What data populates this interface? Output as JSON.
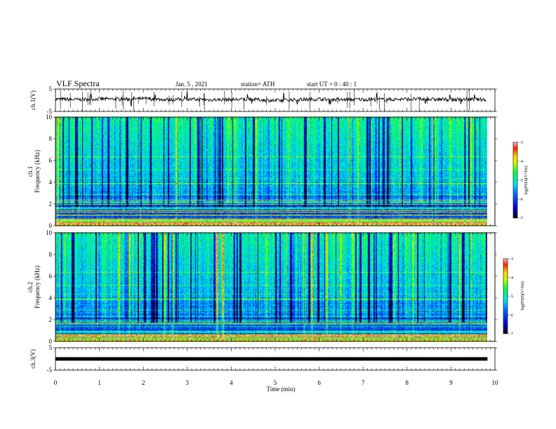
{
  "header": {
    "title": "VLF Spectra",
    "date": "Jan. 5 , 2021",
    "station": "station= ATH",
    "start": "start UT =  0 : 40 : 1"
  },
  "chart_data": [
    {
      "type": "line",
      "name": "ch1-waveform",
      "ylabel": "ch.1(V)",
      "ylim": [
        -5,
        5
      ],
      "yticks": [
        "5",
        "-5"
      ],
      "xlim": [
        0,
        10
      ],
      "x": [
        0.0,
        0.5,
        1.0,
        1.5,
        2.0,
        2.5,
        3.0,
        3.5,
        4.0,
        4.5,
        5.0,
        5.5,
        6.0,
        6.5,
        7.0,
        7.5,
        8.0,
        8.5,
        9.0,
        9.5,
        9.8
      ],
      "y": [
        0.5,
        0.3,
        0.6,
        0.4,
        0.7,
        0.3,
        0.4,
        0.2,
        0.3,
        0.4,
        -0.2,
        0.3,
        0.5,
        0.2,
        0.4,
        0.3,
        0.5,
        0.4,
        0.3,
        0.4,
        0.3
      ],
      "colors": {
        "line": "#000000"
      }
    },
    {
      "type": "heatmap",
      "name": "ch1-spectrogram",
      "ylabel": "ch.1\nFrequency (kHz)",
      "ylim": [
        0,
        10
      ],
      "yticks": [
        "0",
        "2",
        "4",
        "6",
        "8",
        "10"
      ],
      "xlim": [
        0,
        10
      ],
      "data_xmax": 9.83,
      "colorbar": {
        "label": "log(PSD)(V²/Hz)",
        "range": [
          -7,
          -3
        ],
        "ticks": [
          "-3",
          "-4",
          "-5",
          "-6",
          "-7"
        ]
      }
    },
    {
      "type": "heatmap",
      "name": "ch2-spectrogram",
      "ylabel": "ch.2\nFrequency (kHz)",
      "ylim": [
        0,
        10
      ],
      "yticks": [
        "0",
        "2",
        "4",
        "6",
        "8",
        "10"
      ],
      "xlim": [
        0,
        10
      ],
      "data_xmax": 9.83,
      "colorbar": {
        "label": "log(PSD)(V²/Hz)",
        "range": [
          -7,
          -3
        ],
        "ticks": [
          "-3",
          "-4",
          "-5",
          "-6",
          "-7"
        ]
      }
    },
    {
      "type": "line",
      "name": "ch3-waveform",
      "ylabel": "ch.3(V)",
      "ylim": [
        -5,
        5
      ],
      "yticks": [
        "5",
        "-5"
      ],
      "xlim": [
        0,
        10
      ],
      "x": [
        0,
        9.83
      ],
      "y": [
        0,
        0
      ],
      "colors": {
        "line": "#000000"
      }
    }
  ],
  "xaxis": {
    "label": "Time (min)",
    "ticks": [
      "0",
      "1",
      "2",
      "3",
      "4",
      "5",
      "6",
      "7",
      "8",
      "9",
      "10"
    ]
  }
}
